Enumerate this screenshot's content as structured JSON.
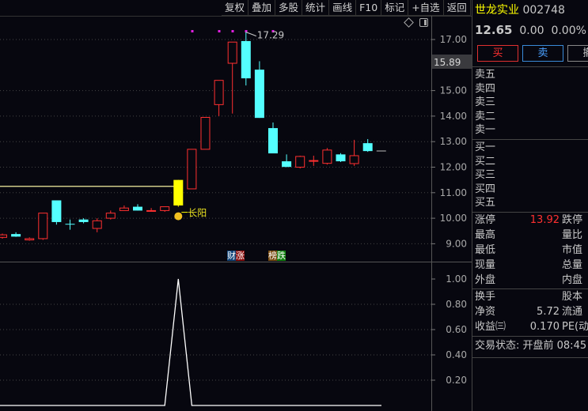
{
  "toolbar": [
    "复权",
    "叠加",
    "多股",
    "统计",
    "画线",
    "F10",
    "标记",
    "+自选",
    "返回"
  ],
  "stock": {
    "name": "世龙实业",
    "code": "002748",
    "price": "12.65",
    "change": "0.00",
    "change_pct": "0.00%"
  },
  "buttons": {
    "buy": "买",
    "sell": "卖",
    "cancel": "撤"
  },
  "order_book": {
    "asks": [
      "卖五",
      "卖四",
      "卖三",
      "卖二",
      "卖一"
    ],
    "bids": [
      "买一",
      "买二",
      "买三",
      "买四",
      "买五"
    ]
  },
  "stats": [
    {
      "label": "涨停",
      "value": "13.92",
      "label2": "跌停"
    },
    {
      "label": "最高",
      "value": "",
      "label2": "量比"
    },
    {
      "label": "最低",
      "value": "",
      "label2": "市值"
    },
    {
      "label": "现量",
      "value": "",
      "label2": "总量"
    },
    {
      "label": "外盘",
      "value": "",
      "label2": "内盘"
    }
  ],
  "stats2": [
    {
      "label": "换手",
      "value": "",
      "label2": "股本"
    },
    {
      "label": "净资",
      "value": "5.72",
      "label2": "流通"
    },
    {
      "label": "收益㈢",
      "value": "0.170",
      "label2": "PE(动"
    }
  ],
  "status": "交易状态: 开盘前 08:45",
  "tags": {
    "cai": "财",
    "zhang": "涨",
    "bang": "榜",
    "die": "跌"
  },
  "colors": {
    "up": "#ff3030",
    "down": "#54ffff",
    "signal": "#ffff00",
    "limit_up": "#ff3030",
    "name": "#ffff00"
  },
  "chart_data": {
    "type": "candlestick",
    "price_axis": {
      "ticks": [
        "17.00",
        "15.00",
        "14.00",
        "13.00",
        "12.00",
        "11.00",
        "10.00",
        "9.00"
      ],
      "current_label": "15.89"
    },
    "high_annotation": "17.29",
    "signal_label": "长阳",
    "reference_line": 11.25,
    "candles": [
      {
        "o": 9.25,
        "h": 9.4,
        "l": 9.2,
        "c": 9.35
      },
      {
        "o": 9.38,
        "h": 9.45,
        "l": 9.27,
        "c": 9.28
      },
      {
        "o": 9.15,
        "h": 9.25,
        "l": 9.12,
        "c": 9.2
      },
      {
        "o": 9.2,
        "h": 10.2,
        "l": 9.15,
        "c": 10.2
      },
      {
        "o": 10.7,
        "h": 10.7,
        "l": 9.75,
        "c": 9.85
      },
      {
        "o": 9.78,
        "h": 9.95,
        "l": 9.55,
        "c": 9.75
      },
      {
        "o": 9.95,
        "h": 10.0,
        "l": 9.8,
        "c": 9.85
      },
      {
        "o": 9.6,
        "h": 10.0,
        "l": 9.45,
        "c": 9.9
      },
      {
        "o": 10.0,
        "h": 10.3,
        "l": 9.95,
        "c": 10.2
      },
      {
        "o": 10.3,
        "h": 10.5,
        "l": 10.3,
        "c": 10.4
      },
      {
        "o": 10.45,
        "h": 10.55,
        "l": 10.3,
        "c": 10.3
      },
      {
        "o": 10.28,
        "h": 10.4,
        "l": 10.28,
        "c": 10.3
      },
      {
        "o": 10.3,
        "h": 10.45,
        "l": 10.25,
        "c": 10.45
      },
      {
        "o": 10.5,
        "h": 11.5,
        "l": 10.45,
        "c": 11.5,
        "signal": true
      },
      {
        "o": 11.15,
        "h": 12.7,
        "l": 11.15,
        "c": 12.7
      },
      {
        "o": 12.7,
        "h": 13.95,
        "l": 12.7,
        "c": 13.95
      },
      {
        "o": 14.45,
        "h": 15.4,
        "l": 14.0,
        "c": 15.4
      },
      {
        "o": 16.07,
        "h": 16.9,
        "l": 14.1,
        "c": 16.9
      },
      {
        "o": 16.94,
        "h": 17.29,
        "l": 15.2,
        "c": 15.48
      },
      {
        "o": 15.82,
        "h": 16.15,
        "l": 13.93,
        "c": 13.93
      },
      {
        "o": 13.53,
        "h": 13.75,
        "l": 12.54,
        "c": 12.54
      },
      {
        "o": 12.23,
        "h": 12.5,
        "l": 12.0,
        "c": 12.01
      },
      {
        "o": 12.0,
        "h": 12.45,
        "l": 11.95,
        "c": 12.42
      },
      {
        "o": 12.26,
        "h": 12.45,
        "l": 12.05,
        "c": 12.26
      },
      {
        "o": 12.15,
        "h": 12.75,
        "l": 12.1,
        "c": 12.67
      },
      {
        "o": 12.5,
        "h": 12.55,
        "l": 12.2,
        "c": 12.23
      },
      {
        "o": 12.14,
        "h": 13.07,
        "l": 12.05,
        "c": 12.45
      },
      {
        "o": 12.94,
        "h": 13.1,
        "l": 12.6,
        "c": 12.63
      },
      {
        "o": 12.65,
        "h": 12.65,
        "l": 12.65,
        "c": 12.65
      }
    ],
    "indicator": {
      "ticks": [
        "1.00",
        "0.80",
        "0.60",
        "0.40",
        "0.20"
      ],
      "values": [
        0,
        0,
        0,
        0,
        0,
        0,
        0,
        0,
        0,
        0,
        0,
        0,
        0,
        1,
        0,
        0,
        0,
        0,
        0,
        0,
        0,
        0,
        0,
        0,
        0,
        0,
        0,
        0,
        0
      ]
    }
  }
}
